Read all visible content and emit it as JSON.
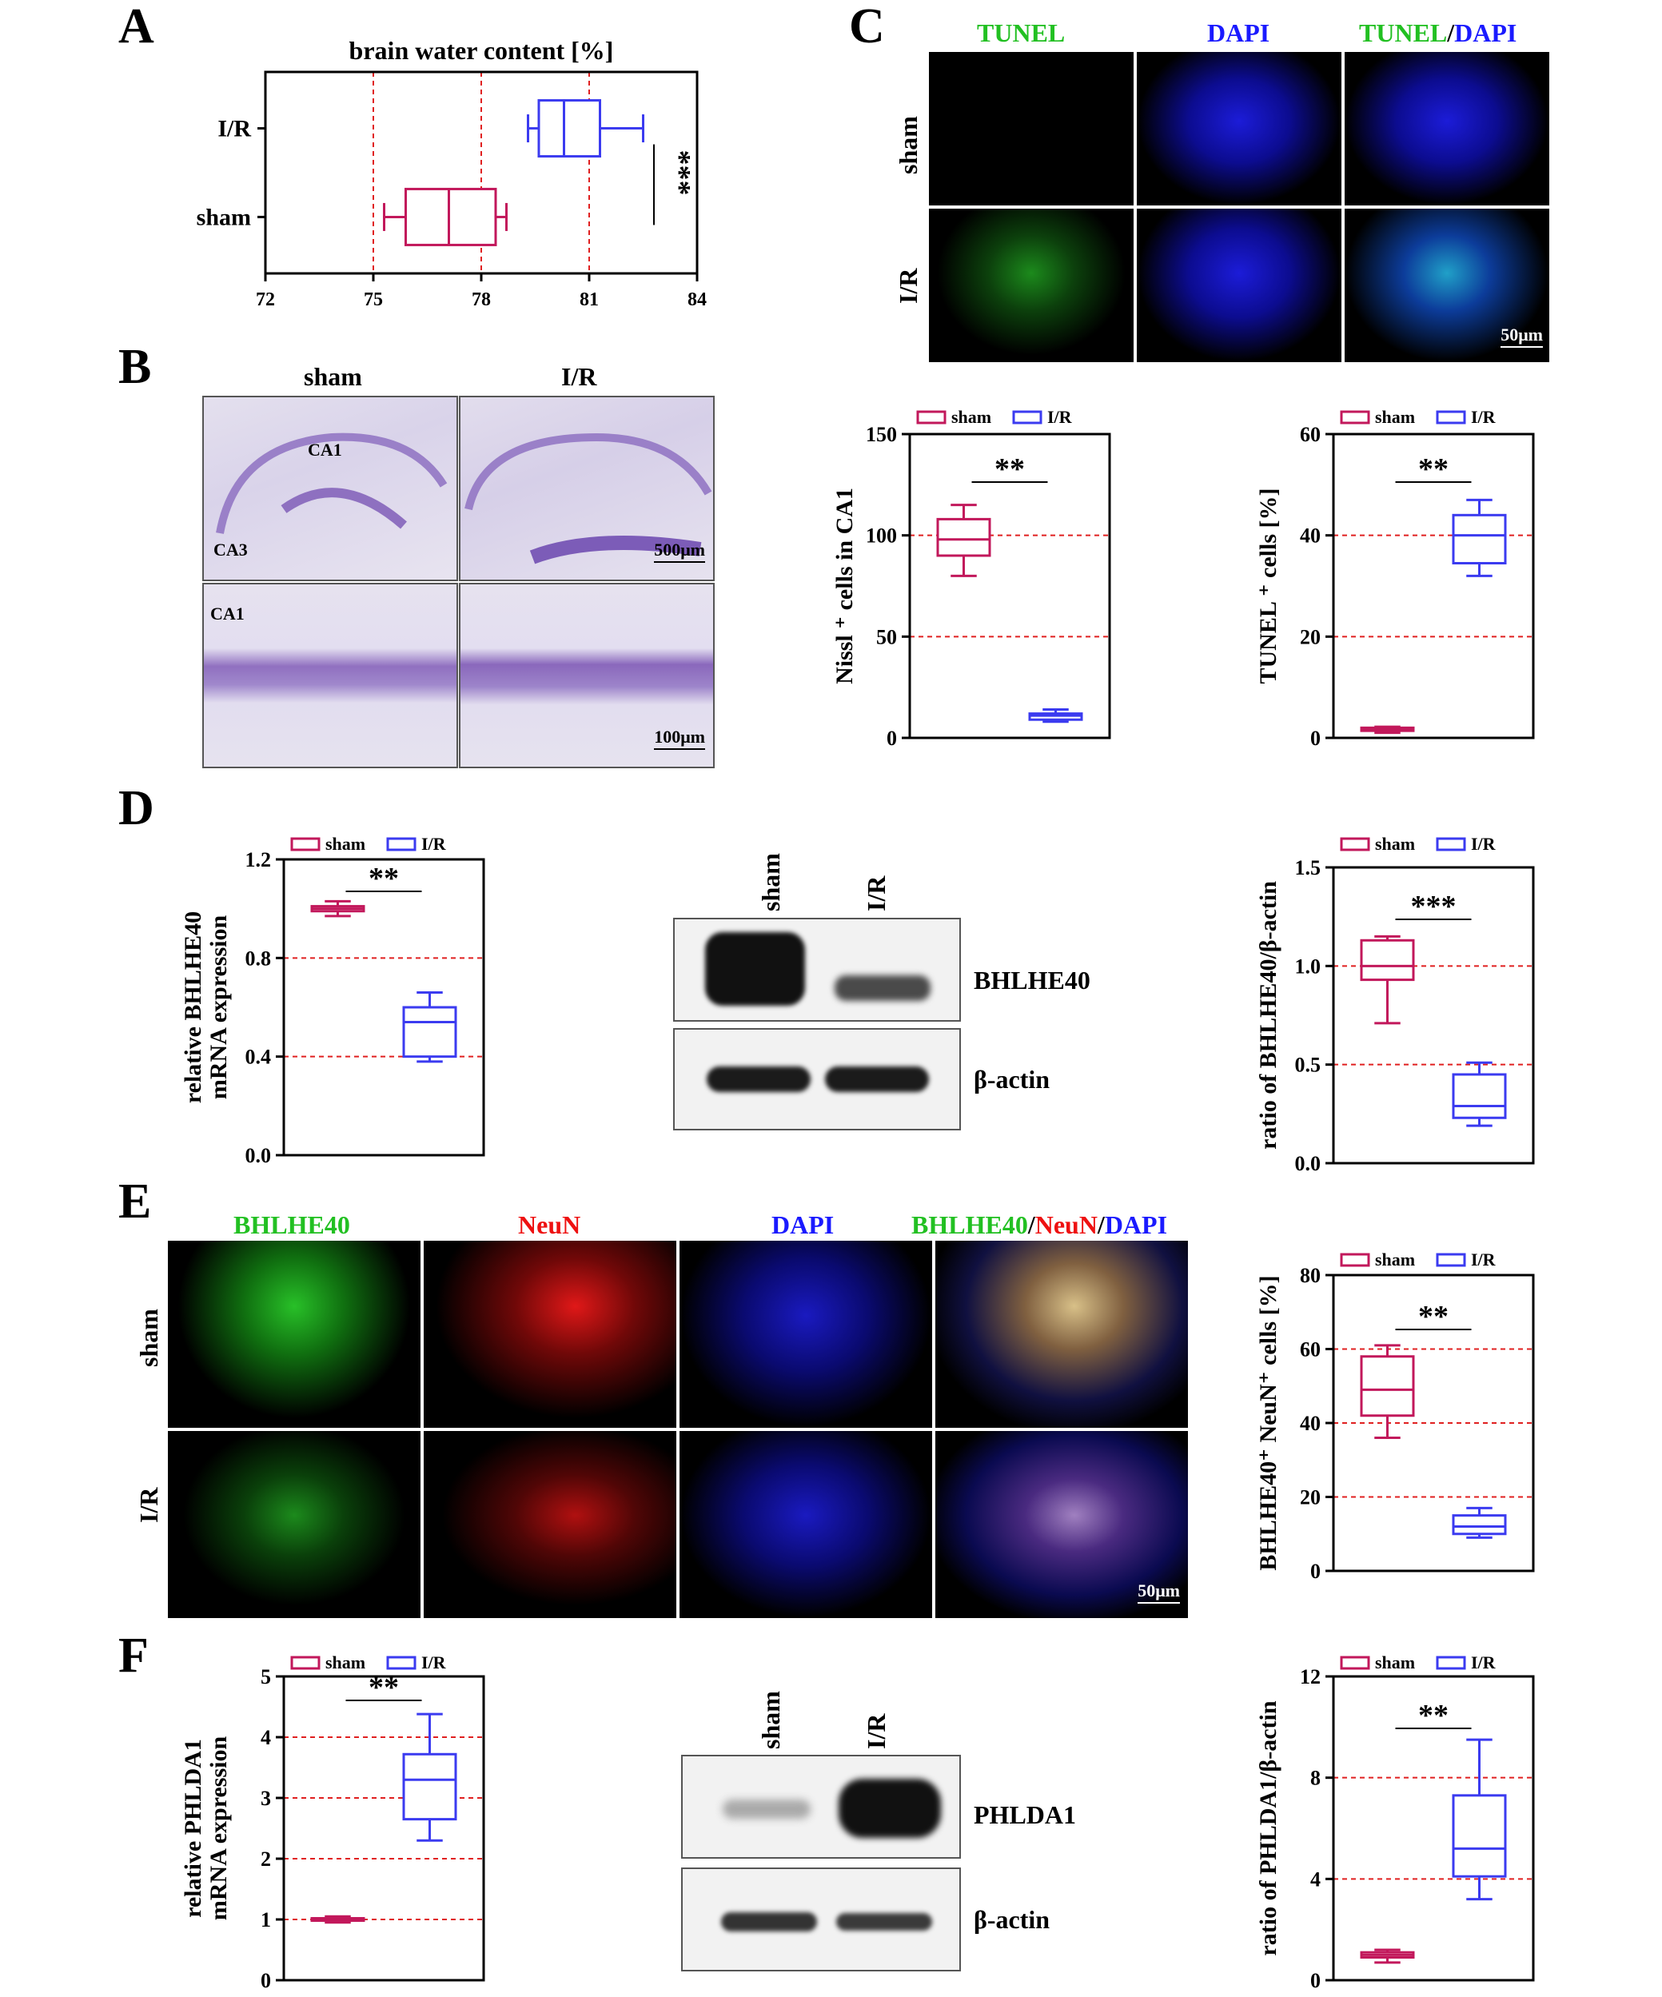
{
  "panels": {
    "A": "A",
    "B": "B",
    "C": "C",
    "D": "D",
    "E": "E",
    "F": "F"
  },
  "colors": {
    "sham": "#c2185b",
    "ir": "#3b3bf0",
    "ref": "#e02020",
    "green": "#22c022",
    "blue": "#1a1aff",
    "red": "#ee1111"
  },
  "panel_b": {
    "col_sham": "sham",
    "col_ir": "I/R",
    "ca1_top": "CA1",
    "ca3": "CA3",
    "ca1_bottom": "CA1",
    "scale_top": "500μm",
    "scale_bottom": "100μm"
  },
  "panel_c": {
    "ch1": "TUNEL",
    "ch2": "DAPI",
    "merge_a": "TUNEL",
    "merge_sep": "/",
    "merge_b": "DAPI",
    "row_sham": "sham",
    "row_ir": "I/R",
    "scale": "50μm"
  },
  "panel_d_blot": {
    "lane_sham": "sham",
    "lane_ir": "I/R",
    "protein": "BHLHE40",
    "loading": "β-actin"
  },
  "panel_e": {
    "ch1": "BHLHE40",
    "ch2": "NeuN",
    "ch3": "DAPI",
    "merge_a": "BHLHE40",
    "sep1": "/",
    "merge_b": "NeuN",
    "sep2": "/",
    "merge_c": "DAPI",
    "row_sham": "sham",
    "row_ir": "I/R",
    "scale": "50μm"
  },
  "panel_f_blot": {
    "lane_sham": "sham",
    "lane_ir": "I/R",
    "protein": "PHLDA1",
    "loading": "β-actin"
  },
  "chart_data": [
    {
      "id": "A",
      "type": "boxplot",
      "orientation": "horizontal",
      "title": "brain water content [%]",
      "categories": [
        "I/R",
        "sham"
      ],
      "xlim": [
        72,
        84
      ],
      "xticks": [
        72,
        75,
        78,
        81,
        84
      ],
      "ref_lines": [
        75,
        78,
        81
      ],
      "series": [
        {
          "name": "I/R",
          "min": 79.3,
          "q1": 79.6,
          "median": 80.3,
          "q3": 81.3,
          "max": 82.5
        },
        {
          "name": "sham",
          "min": 75.3,
          "q1": 75.9,
          "median": 77.1,
          "q3": 78.4,
          "max": 78.7
        }
      ],
      "significance": "***",
      "legend": []
    },
    {
      "id": "C-nissl",
      "type": "boxplot",
      "ylabel": "Nissl ⁺ cells in CA1",
      "ylim": [
        0,
        150
      ],
      "yticks": [
        0,
        50,
        100,
        150
      ],
      "ref_lines": [
        50,
        100
      ],
      "legend": [
        "sham",
        "I/R"
      ],
      "significance": "**",
      "series": [
        {
          "name": "sham",
          "min": 80,
          "q1": 90,
          "median": 98,
          "q3": 108,
          "max": 115
        },
        {
          "name": "I/R",
          "min": 8,
          "q1": 9,
          "median": 11,
          "q3": 12,
          "max": 14
        }
      ]
    },
    {
      "id": "C-tunel",
      "type": "boxplot",
      "ylabel": "TUNEL ⁺ cells [%]",
      "ylim": [
        0,
        60
      ],
      "yticks": [
        0,
        20,
        40,
        60
      ],
      "ref_lines": [
        20,
        40
      ],
      "legend": [
        "sham",
        "I/R"
      ],
      "significance": "**",
      "series": [
        {
          "name": "sham",
          "min": 1,
          "q1": 1.4,
          "median": 1.7,
          "q3": 2,
          "max": 2.2
        },
        {
          "name": "I/R",
          "min": 32,
          "q1": 34.5,
          "median": 40,
          "q3": 44,
          "max": 47
        }
      ]
    },
    {
      "id": "D-mrna",
      "type": "boxplot",
      "ylabel": "relative BHLHE40|mRNA expression",
      "ylim": [
        0,
        1.2
      ],
      "yticks": [
        "0.0",
        "0.4",
        "0.8",
        "1.2"
      ],
      "ytick_values": [
        0,
        0.4,
        0.8,
        1.2
      ],
      "ref_lines": [
        0.4,
        0.8
      ],
      "legend": [
        "sham",
        "I/R"
      ],
      "significance": "**",
      "series": [
        {
          "name": "sham",
          "min": 0.97,
          "q1": 0.99,
          "median": 1.0,
          "q3": 1.01,
          "max": 1.03
        },
        {
          "name": "I/R",
          "min": 0.38,
          "q1": 0.4,
          "median": 0.54,
          "q3": 0.6,
          "max": 0.66
        }
      ]
    },
    {
      "id": "D-ratio",
      "type": "boxplot",
      "ylabel": "ratio of BHLHE40/β-actin",
      "ylim": [
        0,
        1.5
      ],
      "yticks": [
        "0.0",
        "0.5",
        "1.0",
        "1.5"
      ],
      "ytick_values": [
        0,
        0.5,
        1,
        1.5
      ],
      "ref_lines": [
        0.5,
        1.0
      ],
      "legend": [
        "sham",
        "I/R"
      ],
      "significance": "***",
      "series": [
        {
          "name": "sham",
          "min": 0.71,
          "q1": 0.93,
          "median": 1.0,
          "q3": 1.13,
          "max": 1.15
        },
        {
          "name": "I/R",
          "min": 0.19,
          "q1": 0.23,
          "median": 0.29,
          "q3": 0.45,
          "max": 0.51
        }
      ]
    },
    {
      "id": "E-ratio",
      "type": "boxplot",
      "ylabel": "BHLHE40⁺ NeuN⁺ cells [%]",
      "ylim": [
        0,
        80
      ],
      "yticks": [
        0,
        20,
        40,
        60,
        80
      ],
      "ref_lines": [
        20,
        40,
        60
      ],
      "legend": [
        "sham",
        "I/R"
      ],
      "significance": "**",
      "series": [
        {
          "name": "sham",
          "min": 36,
          "q1": 42,
          "median": 49,
          "q3": 58,
          "max": 61
        },
        {
          "name": "I/R",
          "min": 9,
          "q1": 10,
          "median": 12,
          "q3": 15,
          "max": 17
        }
      ]
    },
    {
      "id": "F-mrna",
      "type": "boxplot",
      "ylabel": "relative PHLDA1|mRNA expression",
      "ylim": [
        0,
        5
      ],
      "yticks": [
        0,
        1,
        2,
        3,
        4,
        5
      ],
      "ref_lines": [
        1,
        2,
        3,
        4
      ],
      "legend": [
        "sham",
        "I/R"
      ],
      "significance": "**",
      "series": [
        {
          "name": "sham",
          "min": 0.95,
          "q1": 0.98,
          "median": 1.0,
          "q3": 1.02,
          "max": 1.05
        },
        {
          "name": "I/R",
          "min": 2.3,
          "q1": 2.65,
          "median": 3.3,
          "q3": 3.72,
          "max": 4.38
        }
      ]
    },
    {
      "id": "F-ratio",
      "type": "boxplot",
      "ylabel": "ratio of PHLDA1/β-actin",
      "ylim": [
        0,
        12
      ],
      "yticks": [
        0,
        4,
        8,
        12
      ],
      "ref_lines": [
        4,
        8
      ],
      "legend": [
        "sham",
        "I/R"
      ],
      "significance": "**",
      "series": [
        {
          "name": "sham",
          "min": 0.7,
          "q1": 0.9,
          "median": 1.0,
          "q3": 1.1,
          "max": 1.2
        },
        {
          "name": "I/R",
          "min": 3.2,
          "q1": 4.1,
          "median": 5.2,
          "q3": 7.3,
          "max": 9.5
        }
      ]
    }
  ]
}
